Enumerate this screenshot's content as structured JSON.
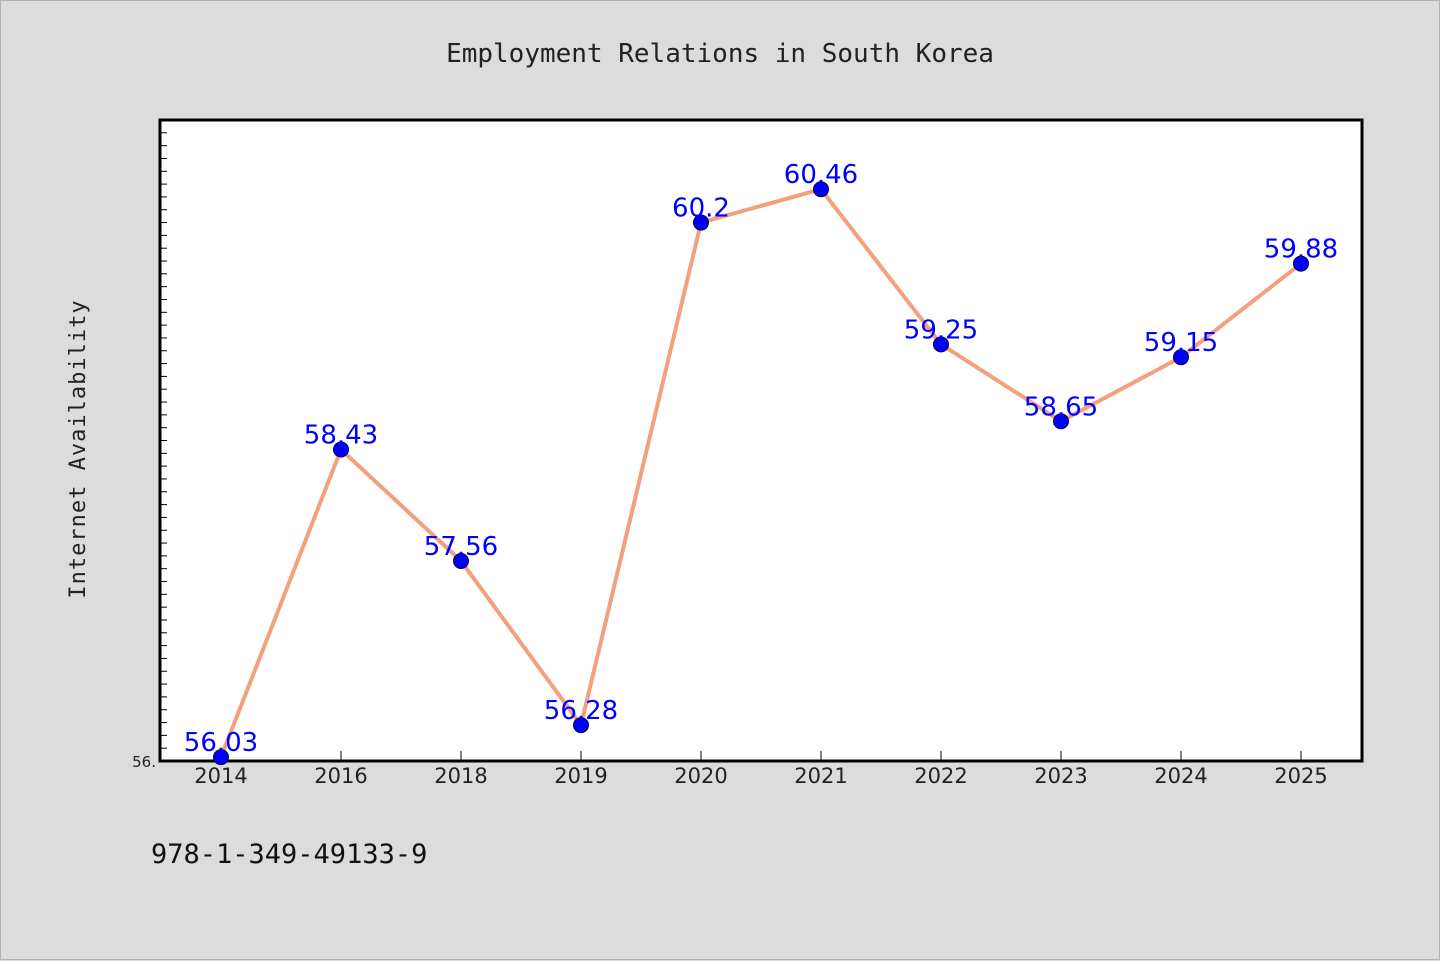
{
  "chart_data": {
    "type": "line",
    "title": "Employment Relations in South Korea",
    "xlabel": "",
    "ylabel": "Internet Availability",
    "categories": [
      "2014",
      "2016",
      "2018",
      "2019",
      "2020",
      "2021",
      "2022",
      "2023",
      "2024",
      "2025"
    ],
    "series": [
      {
        "values": [
          56.03,
          58.43,
          57.56,
          56.28,
          60.2,
          60.46,
          59.25,
          58.65,
          59.15,
          59.88
        ],
        "data_labels": [
          "56.03",
          "58.43",
          "57.56",
          "56.28",
          "60.2",
          "60.46",
          "59.25",
          "58.65",
          "59.15",
          "59.88"
        ]
      }
    ],
    "ylim": [
      56.0,
      61.0
    ],
    "y_tick_label": "56.",
    "grid": false,
    "colors": {
      "line": "#f4a07c",
      "marker": "#0000ff",
      "data_label": "#0000ff",
      "plot_background": "#ffffff",
      "figure_background": "#dcdcdc"
    }
  },
  "footer_text": "978-1-349-49133-9"
}
